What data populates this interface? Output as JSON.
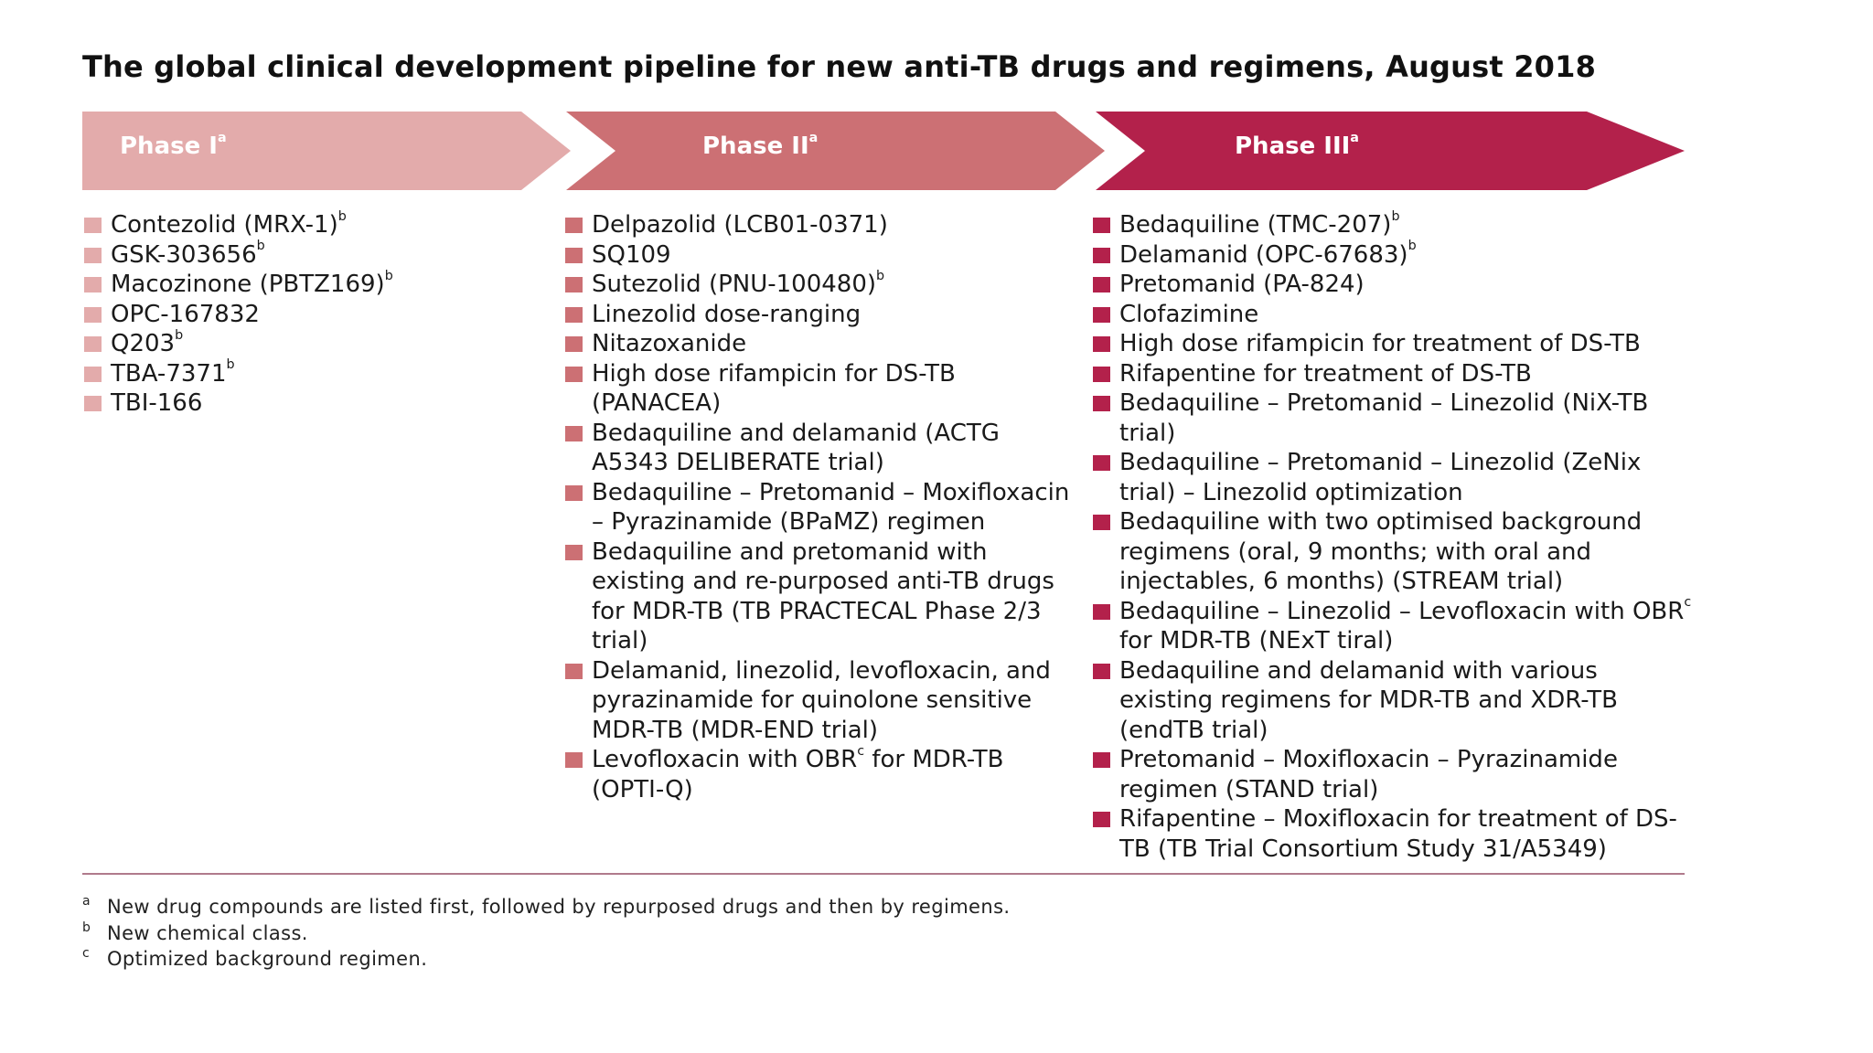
{
  "title": "The global clinical development pipeline for new anti-TB drugs and regimens, August 2018",
  "colors": {
    "phase1": "#e3abab",
    "phase2": "#cc7074",
    "phase3": "#b3214b"
  },
  "phases": [
    {
      "label": "Phase I",
      "label_sup": "a",
      "items": [
        {
          "text": "Contezolid (MRX-1)",
          "sup": "b"
        },
        {
          "text": "GSK-303656",
          "sup": "b"
        },
        {
          "text": "Macozinone (PBTZ169)",
          "sup": "b"
        },
        {
          "text": "OPC-167832",
          "sup": ""
        },
        {
          "text": "Q203",
          "sup": "b"
        },
        {
          "text": "TBA-7371",
          "sup": "b"
        },
        {
          "text": "TBI-166",
          "sup": ""
        }
      ]
    },
    {
      "label": "Phase II",
      "label_sup": "a",
      "items": [
        {
          "text": "Delpazolid (LCB01-0371)",
          "sup": ""
        },
        {
          "text": "SQ109",
          "sup": ""
        },
        {
          "text": "Sutezolid (PNU-100480)",
          "sup": "b"
        },
        {
          "text": "Linezolid dose-ranging",
          "sup": ""
        },
        {
          "text": "Nitazoxanide",
          "sup": ""
        },
        {
          "text": "High dose rifampicin for DS-TB (PANACEA)",
          "sup": ""
        },
        {
          "text": "Bedaquiline and delamanid (ACTG A5343 DELIBERATE trial)",
          "sup": ""
        },
        {
          "text": "Bedaquiline – Pretomanid – Moxifloxacin – Pyrazinamide (BPaMZ) regimen",
          "sup": ""
        },
        {
          "text": "Bedaquiline and pretomanid with existing and re-purposed anti-TB drugs for MDR-TB (TB PRACTECAL Phase 2/3 trial)",
          "sup": ""
        },
        {
          "text": "Delamanid, linezolid, levofloxacin, and pyrazinamide for quinolone sensitive MDR-TB (MDR-END trial)",
          "sup": ""
        },
        {
          "pre": "Levofloxacin with OBR",
          "mid_sup": "c",
          "post": " for MDR-TB (OPTI-Q)"
        }
      ]
    },
    {
      "label": "Phase III",
      "label_sup": "a",
      "items": [
        {
          "text": "Bedaquiline (TMC-207)",
          "sup": "b"
        },
        {
          "text": "Delamanid (OPC-67683)",
          "sup": "b"
        },
        {
          "text": "Pretomanid (PA-824)",
          "sup": ""
        },
        {
          "text": "Clofazimine",
          "sup": ""
        },
        {
          "text": "High dose rifampicin for treatment of DS-TB",
          "sup": ""
        },
        {
          "text": "Rifapentine for treatment of DS-TB",
          "sup": ""
        },
        {
          "text": "Bedaquiline – Pretomanid – Linezolid (NiX-TB trial)",
          "sup": ""
        },
        {
          "text": "Bedaquiline – Pretomanid – Linezolid (ZeNix trial) – Linezolid optimization",
          "sup": ""
        },
        {
          "text": "Bedaquiline with two optimised background regimens (oral, 9 months; with oral and injectables, 6 months) (STREAM trial)",
          "sup": ""
        },
        {
          "pre": "Bedaquiline – Linezolid – Levofloxacin with OBR",
          "mid_sup": "c",
          "post": " for MDR-TB (NExT tiral)"
        },
        {
          "text": "Bedaquiline and delamanid with various existing regimens for MDR-TB and XDR-TB (endTB trial)",
          "sup": ""
        },
        {
          "text": "Pretomanid – Moxifloxacin – Pyrazinamide regimen (STAND trial)",
          "sup": ""
        },
        {
          "text": "Rifapentine – Moxifloxacin for treatment of DS-TB (TB Trial Consortium Study 31/A5349)",
          "sup": ""
        }
      ]
    }
  ],
  "footnotes": [
    {
      "marker": "a",
      "text": "New drug compounds are listed first, followed by repurposed drugs and then by regimens."
    },
    {
      "marker": "b",
      "text": "New chemical class."
    },
    {
      "marker": "c",
      "text": "Optimized background regimen."
    }
  ]
}
